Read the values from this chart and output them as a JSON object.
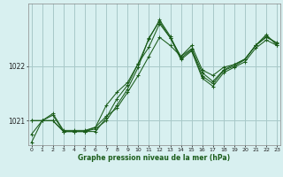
{
  "xlabel": "Graphe pression niveau de la mer (hPa)",
  "bg_color": "#d8f0f0",
  "grid_color": "#a8c8c8",
  "line_color": "#1a5c1a",
  "x_hours": [
    0,
    1,
    2,
    3,
    4,
    5,
    6,
    7,
    8,
    9,
    10,
    11,
    12,
    13,
    14,
    15,
    16,
    17,
    18,
    19,
    20,
    21,
    22,
    23
  ],
  "series": [
    [
      1020.75,
      1021.0,
      1021.0,
      1020.8,
      1020.8,
      1020.8,
      1020.8,
      1021.05,
      1021.4,
      1021.65,
      1022.05,
      1022.5,
      1022.85,
      1022.55,
      1022.15,
      1022.3,
      1021.82,
      1021.68,
      1021.92,
      1022.0,
      1022.12,
      1022.38,
      1022.55,
      1022.42
    ],
    [
      1021.0,
      1021.0,
      1021.1,
      1020.8,
      1020.8,
      1020.8,
      1020.88,
      1021.28,
      1021.52,
      1021.7,
      1022.05,
      1022.35,
      1022.78,
      1022.52,
      1022.18,
      1022.32,
      1021.88,
      1021.72,
      1021.93,
      1022.03,
      1022.13,
      1022.38,
      1022.53,
      1022.43
    ],
    [
      1021.0,
      1021.0,
      1021.13,
      1020.82,
      1020.82,
      1020.82,
      1020.88,
      1021.08,
      1021.23,
      1021.52,
      1021.83,
      1022.18,
      1022.53,
      1022.38,
      1022.18,
      1022.38,
      1021.93,
      1021.83,
      1021.98,
      1022.03,
      1022.13,
      1022.38,
      1022.58,
      1022.38
    ],
    [
      1020.6,
      1021.0,
      1021.0,
      1020.8,
      1020.8,
      1020.8,
      1020.85,
      1021.0,
      1021.28,
      1021.58,
      1021.98,
      1022.52,
      1022.82,
      1022.52,
      1022.12,
      1022.28,
      1021.78,
      1021.63,
      1021.88,
      1021.98,
      1022.08,
      1022.33,
      1022.48,
      1022.38
    ]
  ],
  "ylim": [
    1020.55,
    1023.15
  ],
  "yticks": [
    1021.0,
    1022.0
  ],
  "xlim": [
    -0.3,
    23.3
  ]
}
